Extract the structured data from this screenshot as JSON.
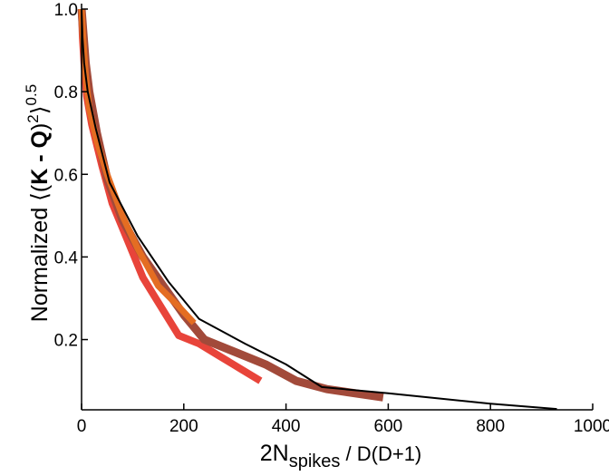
{
  "chart_data": {
    "type": "line",
    "xlabel": {
      "main": "2N",
      "sub": "spikes",
      "rest": " / D(D+1)"
    },
    "ylabel": {
      "prefix": "Normalized ",
      "open": "⟨(",
      "bold": "K - Q",
      "close": ")",
      "sq": "2",
      "end": "⟩",
      "pow": "0.5"
    },
    "xlim": [
      0,
      1000
    ],
    "ylim": [
      0.03,
      1.0
    ],
    "xticks": [
      0,
      200,
      400,
      600,
      800,
      1000
    ],
    "yticks": [
      0.2,
      0.4,
      0.6,
      0.8,
      1.0
    ],
    "ytick_labels": [
      "0.2",
      "0.4",
      "0.6",
      "0.8",
      "1.0"
    ],
    "grid": false,
    "series": [
      {
        "color": "#e8443a",
        "width": 8,
        "points": [
          [
            0,
            1.0
          ],
          [
            2,
            0.93
          ],
          [
            5,
            0.87
          ],
          [
            10,
            0.79
          ],
          [
            20,
            0.72
          ],
          [
            40,
            0.62
          ],
          [
            60,
            0.53
          ],
          [
            90,
            0.44
          ],
          [
            120,
            0.35
          ],
          [
            150,
            0.29
          ],
          [
            190,
            0.21
          ],
          [
            230,
            0.19
          ],
          [
            270,
            0.16
          ],
          [
            310,
            0.13
          ],
          [
            350,
            0.1
          ]
        ]
      },
      {
        "color": "#a24a3a",
        "width": 9,
        "points": [
          [
            0,
            1.0
          ],
          [
            3,
            0.95
          ],
          [
            8,
            0.87
          ],
          [
            15,
            0.8
          ],
          [
            30,
            0.7
          ],
          [
            50,
            0.59
          ],
          [
            80,
            0.49
          ],
          [
            120,
            0.4
          ],
          [
            160,
            0.33
          ],
          [
            200,
            0.26
          ],
          [
            240,
            0.2
          ],
          [
            300,
            0.17
          ],
          [
            360,
            0.14
          ],
          [
            420,
            0.1
          ],
          [
            480,
            0.08
          ],
          [
            590,
            0.06
          ]
        ]
      },
      {
        "color": "#e46d22",
        "width": 7,
        "points": [
          [
            0,
            1.0
          ],
          [
            3,
            0.93
          ],
          [
            8,
            0.84
          ],
          [
            15,
            0.76
          ],
          [
            30,
            0.68
          ],
          [
            50,
            0.6
          ],
          [
            80,
            0.5
          ],
          [
            110,
            0.42
          ],
          [
            150,
            0.33
          ],
          [
            190,
            0.28
          ],
          [
            220,
            0.24
          ]
        ]
      },
      {
        "color": "#000000",
        "width": 2,
        "points": [
          [
            0,
            1.0
          ],
          [
            2,
            0.93
          ],
          [
            5,
            0.87
          ],
          [
            12,
            0.8
          ],
          [
            28,
            0.71
          ],
          [
            55,
            0.58
          ],
          [
            110,
            0.45
          ],
          [
            170,
            0.34
          ],
          [
            230,
            0.25
          ],
          [
            320,
            0.19
          ],
          [
            400,
            0.14
          ],
          [
            470,
            0.085
          ],
          [
            600,
            0.07
          ],
          [
            800,
            0.045
          ],
          [
            930,
            0.032
          ]
        ]
      }
    ]
  }
}
